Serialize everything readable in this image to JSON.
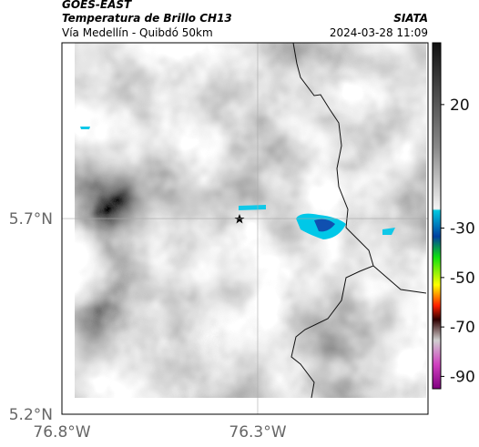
{
  "header": {
    "satellite": "GOES-EAST",
    "product": "Temperatura de Brillo CH13",
    "route": "Vía Medellín - Quibdó 50km",
    "agency": "SIATA",
    "timestamp": "2024-03-28 11:09"
  },
  "map": {
    "xlim": [
      -76.8,
      -75.865
    ],
    "ylim": [
      5.2,
      6.149
    ],
    "xticks": [
      {
        "value": -76.8,
        "label": "76.8°W"
      },
      {
        "value": -76.3,
        "label": "76.3°W"
      }
    ],
    "yticks": [
      {
        "value": 5.2,
        "label": "5.2°N"
      },
      {
        "value": 5.7,
        "label": "5.7°N"
      }
    ],
    "grid": true
  },
  "colorbar": {
    "lim": [
      -95,
      45
    ],
    "ticks": [
      20,
      -30,
      -50,
      -70,
      -90
    ]
  }
}
